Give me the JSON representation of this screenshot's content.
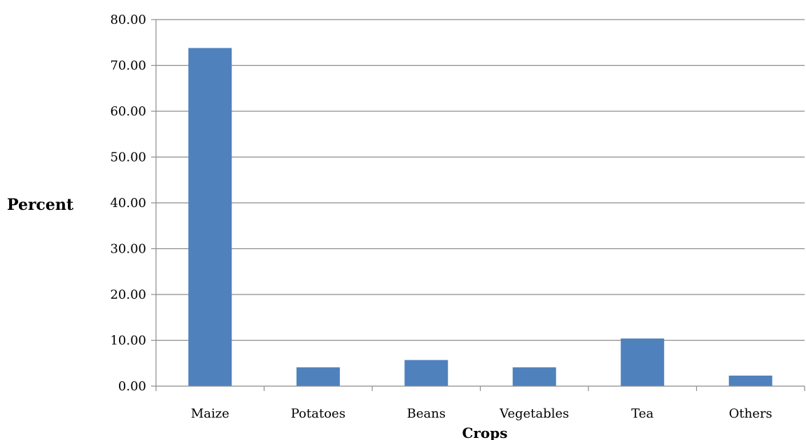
{
  "chart_data": {
    "type": "bar",
    "title": "",
    "xlabel": "Crops",
    "ylabel": "Percent",
    "categories": [
      "Maize",
      "Potatoes",
      "Beans",
      "Vegetables",
      "Tea",
      "Others"
    ],
    "values": [
      73.8,
      4.1,
      5.7,
      4.1,
      10.4,
      2.3
    ],
    "ylim": [
      0,
      80
    ],
    "yticks": [
      "0.00",
      "10.00",
      "20.00",
      "30.00",
      "40.00",
      "50.00",
      "60.00",
      "70.00",
      "80.00"
    ],
    "grid": true,
    "legend": "none",
    "bar_color": "#4f81bd"
  }
}
